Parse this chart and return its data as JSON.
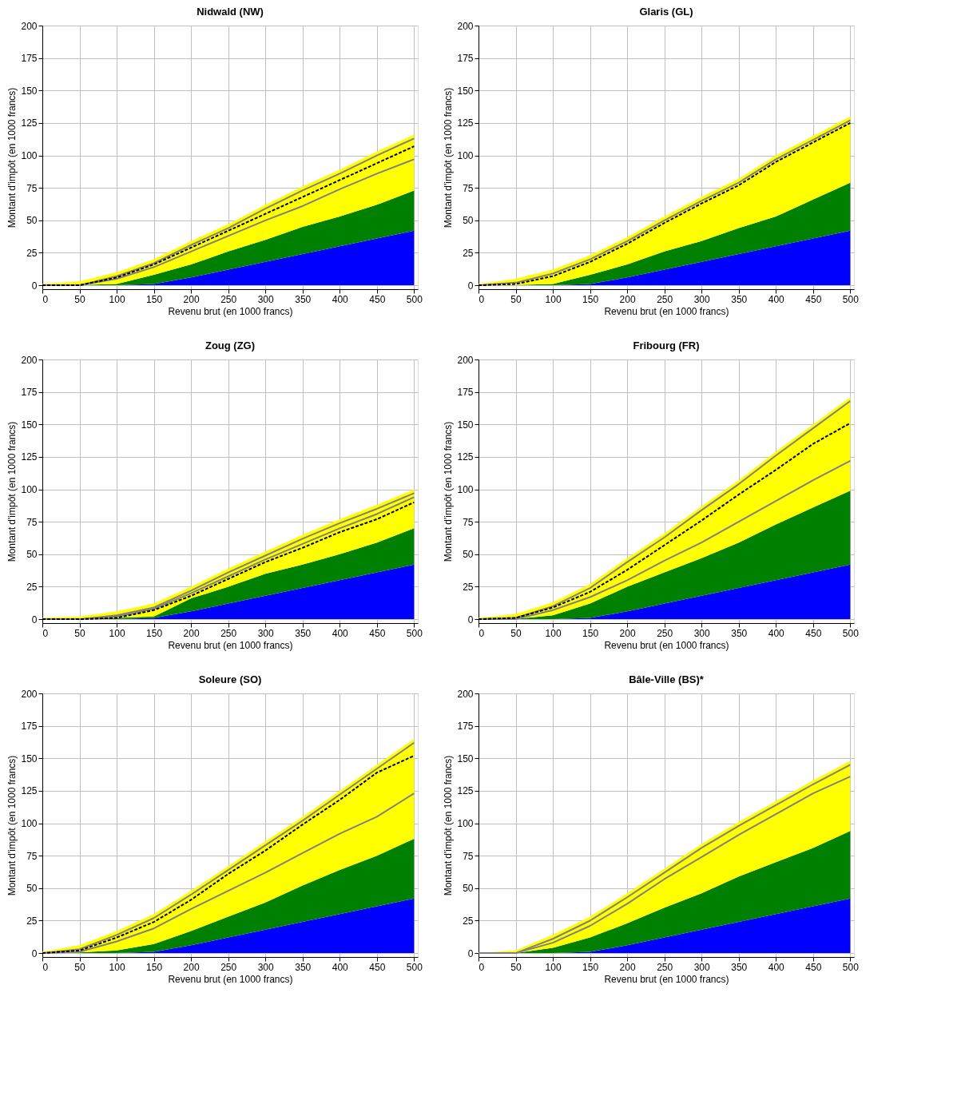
{
  "chart_data": [
    {
      "type": "area",
      "title": "Nidwald (NW)",
      "xlabel": "Revenu brut (en 1000 francs)",
      "ylabel": "Montant d'impôt (en 1000 francs)",
      "stacked": true,
      "grid": true,
      "legend": false,
      "marker": "none",
      "x": [
        0,
        50,
        100,
        150,
        200,
        250,
        300,
        350,
        400,
        450,
        500
      ],
      "xlim": [
        0,
        505
      ],
      "xticks": [
        0,
        50,
        100,
        150,
        200,
        250,
        300,
        350,
        400,
        450,
        500
      ],
      "ylim": [
        -3,
        200
      ],
      "yticks": [
        0,
        25,
        50,
        75,
        100,
        125,
        150,
        175,
        200
      ],
      "series": [
        {
          "color": "#0000ff",
          "values": [
            0,
            0,
            0,
            1,
            6,
            12,
            18,
            24,
            30,
            36,
            42
          ]
        },
        {
          "color": "#008000",
          "values": [
            0,
            0.3,
            1,
            7,
            10,
            14,
            17,
            21,
            23,
            26,
            31
          ]
        },
        {
          "color": "#ffff00",
          "values": [
            1,
            2.7,
            9,
            12,
            18,
            21,
            27,
            31,
            36,
            41,
            43
          ]
        },
        {
          "type": "line",
          "color": "#808080",
          "line_style": "solid",
          "values": [
            0,
            0,
            7,
            17,
            31,
            44,
            59,
            73,
            86,
            100,
            113
          ]
        },
        {
          "type": "line",
          "color": "#808080",
          "line_style": "solid",
          "values": [
            0,
            0,
            5,
            14,
            26,
            38,
            50,
            61,
            74,
            86,
            97
          ]
        },
        {
          "type": "line",
          "color": "#000000",
          "line_style": "dashed",
          "values": [
            0,
            0,
            6,
            16,
            29,
            42,
            55,
            68,
            81,
            94,
            107
          ]
        }
      ]
    },
    {
      "type": "area",
      "title": "Glaris (GL)",
      "xlabel": "Revenu brut (en 1000 francs)",
      "ylabel": "Montant d'impôt (en 1000 francs)",
      "stacked": true,
      "grid": true,
      "legend": false,
      "marker": "none",
      "x": [
        0,
        50,
        100,
        150,
        200,
        250,
        300,
        350,
        400,
        450,
        500
      ],
      "xlim": [
        0,
        505
      ],
      "xticks": [
        0,
        50,
        100,
        150,
        200,
        250,
        300,
        350,
        400,
        450,
        500
      ],
      "ylim": [
        -3,
        200
      ],
      "yticks": [
        0,
        25,
        50,
        75,
        100,
        125,
        150,
        175,
        200
      ],
      "series": [
        {
          "color": "#0000ff",
          "values": [
            0,
            0,
            0,
            1,
            6,
            12,
            18,
            24,
            30,
            36,
            42
          ]
        },
        {
          "color": "#008000",
          "values": [
            0,
            0.3,
            1,
            7,
            10,
            14,
            16,
            20,
            23,
            30,
            37
          ]
        },
        {
          "color": "#ffff00",
          "values": [
            1,
            4.7,
            11,
            15,
            21,
            27,
            34,
            38,
            47,
            49,
            51
          ]
        },
        {
          "type": "line",
          "color": "#808080",
          "line_style": "solid",
          "values": [
            0,
            2,
            9,
            20,
            34,
            50,
            65,
            79,
            97,
            112,
            127
          ]
        },
        {
          "type": "line",
          "color": "#000000",
          "line_style": "dashed",
          "values": [
            0,
            1,
            7,
            18,
            32,
            48,
            63,
            77,
            95,
            110,
            125
          ]
        }
      ]
    },
    {
      "type": "area",
      "title": "Zoug (ZG)",
      "xlabel": "Revenu brut (en 1000 francs)",
      "ylabel": "Montant d'impôt (en 1000 francs)",
      "stacked": true,
      "grid": true,
      "legend": false,
      "marker": "none",
      "x": [
        0,
        50,
        100,
        150,
        200,
        250,
        300,
        350,
        400,
        450,
        500
      ],
      "xlim": [
        0,
        505
      ],
      "xticks": [
        0,
        50,
        100,
        150,
        200,
        250,
        300,
        350,
        400,
        450,
        500
      ],
      "ylim": [
        -3,
        200
      ],
      "yticks": [
        0,
        25,
        50,
        75,
        100,
        125,
        150,
        175,
        200
      ],
      "series": [
        {
          "color": "#0000ff",
          "values": [
            0,
            0,
            0,
            1,
            6,
            12,
            18,
            24,
            30,
            36,
            42
          ]
        },
        {
          "color": "#008000",
          "values": [
            0,
            0.3,
            1,
            1,
            10,
            13,
            17,
            18,
            20,
            23,
            28
          ]
        },
        {
          "color": "#ffff00",
          "values": [
            1,
            1.7,
            5,
            10,
            9,
            14,
            17,
            23,
            27,
            29,
            30
          ]
        },
        {
          "type": "line",
          "color": "#808080",
          "line_style": "solid",
          "values": [
            0,
            0,
            3,
            9,
            22,
            36,
            49,
            62,
            74,
            85,
            97
          ]
        },
        {
          "type": "line",
          "color": "#808080",
          "line_style": "solid",
          "values": [
            0,
            0,
            2,
            8,
            20,
            33,
            46,
            58,
            70,
            81,
            94
          ]
        },
        {
          "type": "line",
          "color": "#000000",
          "line_style": "dashed",
          "values": [
            0,
            0,
            1,
            7,
            18,
            31,
            44,
            55,
            67,
            77,
            90
          ]
        }
      ]
    },
    {
      "type": "area",
      "title": "Fribourg (FR)",
      "xlabel": "Revenu brut (en 1000 francs)",
      "ylabel": "Montant d'impôt (en 1000 francs)",
      "stacked": true,
      "grid": true,
      "legend": false,
      "marker": "none",
      "x": [
        0,
        50,
        100,
        150,
        200,
        250,
        300,
        350,
        400,
        450,
        500
      ],
      "xlim": [
        0,
        505
      ],
      "xticks": [
        0,
        50,
        100,
        150,
        200,
        250,
        300,
        350,
        400,
        450,
        500
      ],
      "ylim": [
        -3,
        200
      ],
      "yticks": [
        0,
        25,
        50,
        75,
        100,
        125,
        150,
        175,
        200
      ],
      "series": [
        {
          "color": "#0000ff",
          "values": [
            0,
            0,
            0,
            1,
            6,
            12,
            18,
            24,
            30,
            36,
            42
          ]
        },
        {
          "color": "#008000",
          "values": [
            0,
            0.3,
            3,
            11,
            19,
            24,
            29,
            35,
            43,
            50,
            57
          ]
        },
        {
          "color": "#ffff00",
          "values": [
            1,
            3.7,
            10,
            15,
            22,
            30,
            40,
            48,
            56,
            64,
            72
          ]
        },
        {
          "type": "line",
          "color": "#808080",
          "line_style": "solid",
          "values": [
            0,
            1,
            10,
            24,
            44,
            63,
            84,
            104,
            126,
            147,
            168
          ]
        },
        {
          "type": "line",
          "color": "#808080",
          "line_style": "solid",
          "values": [
            0,
            0,
            7,
            17,
            30,
            45,
            59,
            75,
            91,
            107,
            122
          ]
        },
        {
          "type": "line",
          "color": "#000000",
          "line_style": "dashed",
          "values": [
            0,
            1,
            9,
            21,
            38,
            57,
            76,
            96,
            115,
            135,
            151
          ]
        }
      ]
    },
    {
      "type": "area",
      "title": "Soleure (SO)",
      "xlabel": "Revenu brut (en 1000 francs)",
      "ylabel": "Montant d'impôt (en 1000 francs)",
      "stacked": true,
      "grid": true,
      "legend": false,
      "marker": "none",
      "x": [
        0,
        50,
        100,
        150,
        200,
        250,
        300,
        350,
        400,
        450,
        500
      ],
      "xlim": [
        0,
        505
      ],
      "xticks": [
        0,
        50,
        100,
        150,
        200,
        250,
        300,
        350,
        400,
        450,
        500
      ],
      "ylim": [
        -3,
        200
      ],
      "yticks": [
        0,
        25,
        50,
        75,
        100,
        125,
        150,
        175,
        200
      ],
      "series": [
        {
          "color": "#0000ff",
          "values": [
            0,
            0,
            0,
            1,
            6,
            12,
            18,
            24,
            30,
            36,
            42
          ]
        },
        {
          "color": "#008000",
          "values": [
            0,
            0.5,
            2,
            6,
            11,
            16,
            21,
            28,
            34,
            39,
            46
          ]
        },
        {
          "color": "#ffff00",
          "values": [
            1,
            5.5,
            15,
            23,
            31,
            39,
            47,
            53,
            61,
            70,
            77
          ]
        },
        {
          "type": "line",
          "color": "#808080",
          "line_style": "solid",
          "values": [
            0,
            3,
            14,
            27,
            45,
            64,
            83,
            102,
            122,
            142,
            162
          ]
        },
        {
          "type": "line",
          "color": "#808080",
          "line_style": "solid",
          "values": [
            0,
            1,
            9,
            19,
            34,
            48,
            62,
            77,
            92,
            105,
            123
          ]
        },
        {
          "type": "line",
          "color": "#000000",
          "line_style": "dashed",
          "values": [
            0,
            2,
            12,
            24,
            41,
            61,
            79,
            99,
            118,
            139,
            152
          ]
        }
      ]
    },
    {
      "type": "area",
      "title": "Bâle-Ville (BS)*",
      "xlabel": "Revenu brut (en 1000 francs)",
      "ylabel": "Montant d'impôt (en 1000 francs)",
      "stacked": true,
      "grid": true,
      "legend": false,
      "marker": "none",
      "x": [
        0,
        50,
        100,
        150,
        200,
        250,
        300,
        350,
        400,
        450,
        500
      ],
      "xlim": [
        0,
        505
      ],
      "xticks": [
        0,
        50,
        100,
        150,
        200,
        250,
        300,
        350,
        400,
        450,
        500
      ],
      "ylim": [
        -3,
        200
      ],
      "yticks": [
        0,
        25,
        50,
        75,
        100,
        125,
        150,
        175,
        200
      ],
      "series": [
        {
          "color": "#0000ff",
          "values": [
            0,
            0,
            0,
            1,
            6,
            12,
            18,
            24,
            30,
            36,
            42
          ]
        },
        {
          "color": "#008000",
          "values": [
            0,
            0,
            4,
            11,
            17,
            23,
            28,
            35,
            40,
            45,
            52
          ]
        },
        {
          "color": "#ffff00",
          "values": [
            0,
            2,
            10,
            16,
            23,
            30,
            38,
            42,
            47,
            52,
            54
          ]
        },
        {
          "type": "line",
          "color": "#808080",
          "line_style": "solid",
          "values": [
            0,
            0,
            11,
            25,
            43,
            62,
            81,
            98,
            114,
            130,
            145
          ]
        },
        {
          "type": "line",
          "color": "#808080",
          "line_style": "solid",
          "values": [
            0,
            0,
            8,
            21,
            38,
            57,
            74,
            91,
            107,
            123,
            136
          ]
        }
      ]
    }
  ]
}
